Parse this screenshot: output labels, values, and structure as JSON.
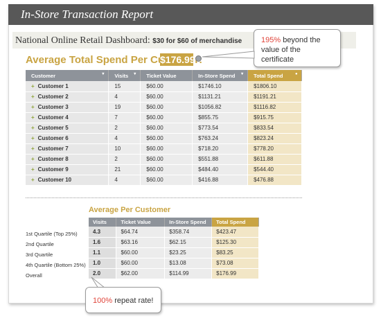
{
  "title": "In-Store Transaction Report",
  "dashboard": {
    "title": "National Online Retail Dashboard:",
    "subtitle": "$30 for $60 of merchandise"
  },
  "average": {
    "label": "Average Total Spend Per Customer:",
    "value": "$176.99"
  },
  "callouts": {
    "beyond_pct": "195%",
    "beyond_text": " beyond the value of the certificate",
    "repeat_pct": "100%",
    "repeat_text": " repeat rate!"
  },
  "customers_table": {
    "headers": [
      "Customer",
      "Visits",
      "Ticket Value",
      "In-Store Spend",
      "Total Spend"
    ],
    "rows": [
      [
        "Customer 1",
        "15",
        "$60.00",
        "$1746.10",
        "$1806.10"
      ],
      [
        "Customer 2",
        "4",
        "$60.00",
        "$1131.21",
        "$1191.21"
      ],
      [
        "Customer 3",
        "19",
        "$60.00",
        "$1056.82",
        "$1116.82"
      ],
      [
        "Customer 4",
        "7",
        "$60.00",
        "$855.75",
        "$915.75"
      ],
      [
        "Customer 5",
        "2",
        "$60.00",
        "$773.54",
        "$833.54"
      ],
      [
        "Customer 6",
        "4",
        "$60.00",
        "$763.24",
        "$823.24"
      ],
      [
        "Customer 7",
        "10",
        "$60.00",
        "$718.20",
        "$778.20"
      ],
      [
        "Customer 8",
        "2",
        "$60.00",
        "$551.88",
        "$611.88"
      ],
      [
        "Customer 9",
        "21",
        "$60.00",
        "$484.40",
        "$544.40"
      ],
      [
        "Customer 10",
        "4",
        "$60.00",
        "$416.88",
        "$476.88"
      ]
    ]
  },
  "avg_per_customer": {
    "title": "Average Per Customer",
    "headers": [
      "Visits",
      "Ticket Value",
      "In-Store Spend",
      "Total Spend"
    ],
    "row_labels": [
      "1st Quartile (Top 25%)",
      "2nd Quartile",
      "3rd Quartile",
      "4th Quartile (Bottom 25%)",
      "Overall"
    ],
    "rows": [
      [
        "4.3",
        "$64.74",
        "$358.74",
        "$423.47"
      ],
      [
        "1.6",
        "$63.16",
        "$62.15",
        "$125.30"
      ],
      [
        "1.1",
        "$60.00",
        "$23.25",
        "$83.25"
      ],
      [
        "1.0",
        "$60.00",
        "$13.08",
        "$73.08"
      ],
      [
        "2.0",
        "$62.00",
        "$114.99",
        "$176.99"
      ]
    ]
  },
  "colors": {
    "accent_gold": "#c9a443",
    "header_gray": "#8e939a",
    "title_bar": "#585858",
    "callout_red": "#e0443a"
  }
}
